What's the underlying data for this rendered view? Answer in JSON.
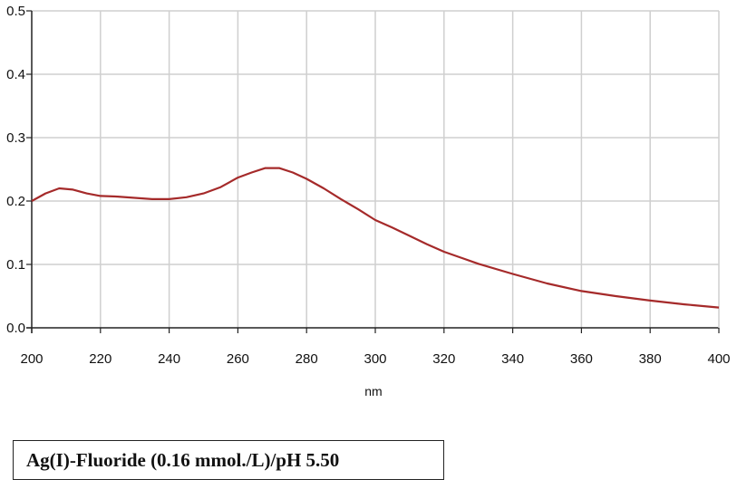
{
  "chart_data": {
    "type": "line",
    "title": "",
    "xlabel": "nm",
    "ylabel": "",
    "xlim": [
      200,
      400
    ],
    "ylim": [
      0,
      0.5
    ],
    "xticks": [
      200,
      220,
      240,
      260,
      280,
      300,
      320,
      340,
      360,
      380,
      400
    ],
    "yticks": [
      0.0,
      0.1,
      0.2,
      0.3,
      0.4,
      0.5
    ],
    "xtick_labels": [
      "200",
      "220",
      "240",
      "260",
      "280",
      "300",
      "320",
      "340",
      "360",
      "380",
      "400"
    ],
    "ytick_labels": [
      "0.0",
      "0.1",
      "0.2",
      "0.3",
      "0.4",
      "0.5"
    ],
    "grid": true,
    "legend": "none",
    "series": [
      {
        "color": "#a52a2a",
        "x": [
          200,
          204,
          208,
          212,
          216,
          220,
          225,
          230,
          235,
          240,
          245,
          250,
          255,
          260,
          264,
          268,
          272,
          276,
          280,
          285,
          290,
          295,
          300,
          305,
          310,
          315,
          320,
          330,
          340,
          350,
          360,
          370,
          380,
          390,
          400
        ],
        "y": [
          0.2,
          0.212,
          0.22,
          0.218,
          0.212,
          0.208,
          0.207,
          0.205,
          0.203,
          0.203,
          0.206,
          0.212,
          0.222,
          0.237,
          0.245,
          0.252,
          0.252,
          0.245,
          0.235,
          0.22,
          0.203,
          0.187,
          0.17,
          0.158,
          0.145,
          0.132,
          0.12,
          0.101,
          0.085,
          0.07,
          0.058,
          0.05,
          0.043,
          0.037,
          0.032
        ]
      }
    ]
  },
  "caption": {
    "text": "Ag(I)-Fluoride (0.16 mmol./L)/pH 5.50"
  }
}
